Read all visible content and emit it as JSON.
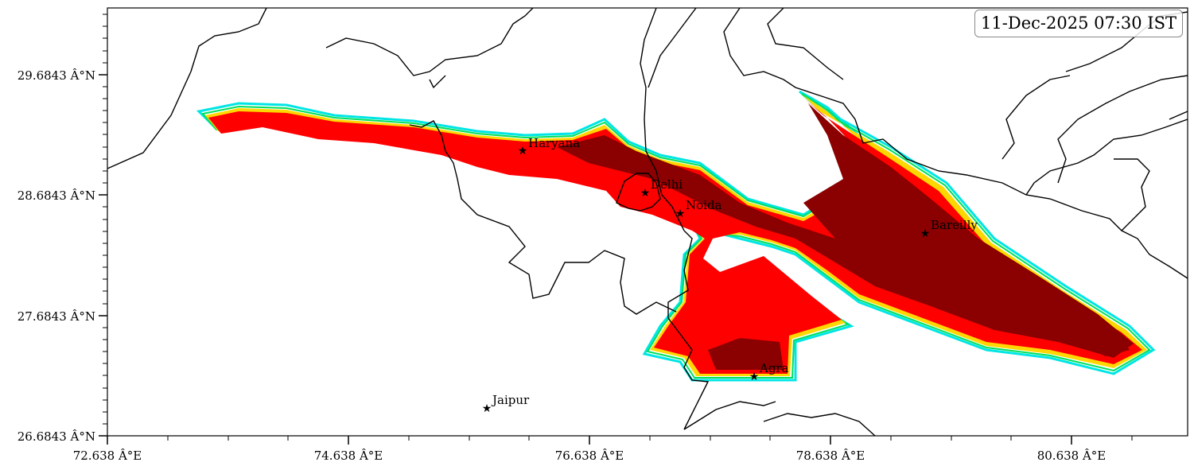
{
  "timestamp": "11-Dec-2025 07:30 IST",
  "axes": {
    "y_ticks": [
      "29.6843 Â°N",
      "28.6843 Â°N",
      "27.6843 Â°N",
      "26.6843 Â°N"
    ],
    "x_ticks": [
      "72.638 Â°E",
      "74.638 Â°E",
      "76.638 Â°E",
      "78.638 Â°E",
      "80.638 Â°E"
    ]
  },
  "cities": [
    {
      "name": "Haryana"
    },
    {
      "name": "Delhi"
    },
    {
      "name": "Noida"
    },
    {
      "name": "Bareilly"
    },
    {
      "name": "Agra"
    },
    {
      "name": "Jaipur"
    }
  ],
  "legend_colors": {
    "level_1": "#00e5e5",
    "level_2": "#00e05a",
    "level_3": "#ffd700",
    "level_4": "#ff0000",
    "level_5": "#8b0000"
  }
}
